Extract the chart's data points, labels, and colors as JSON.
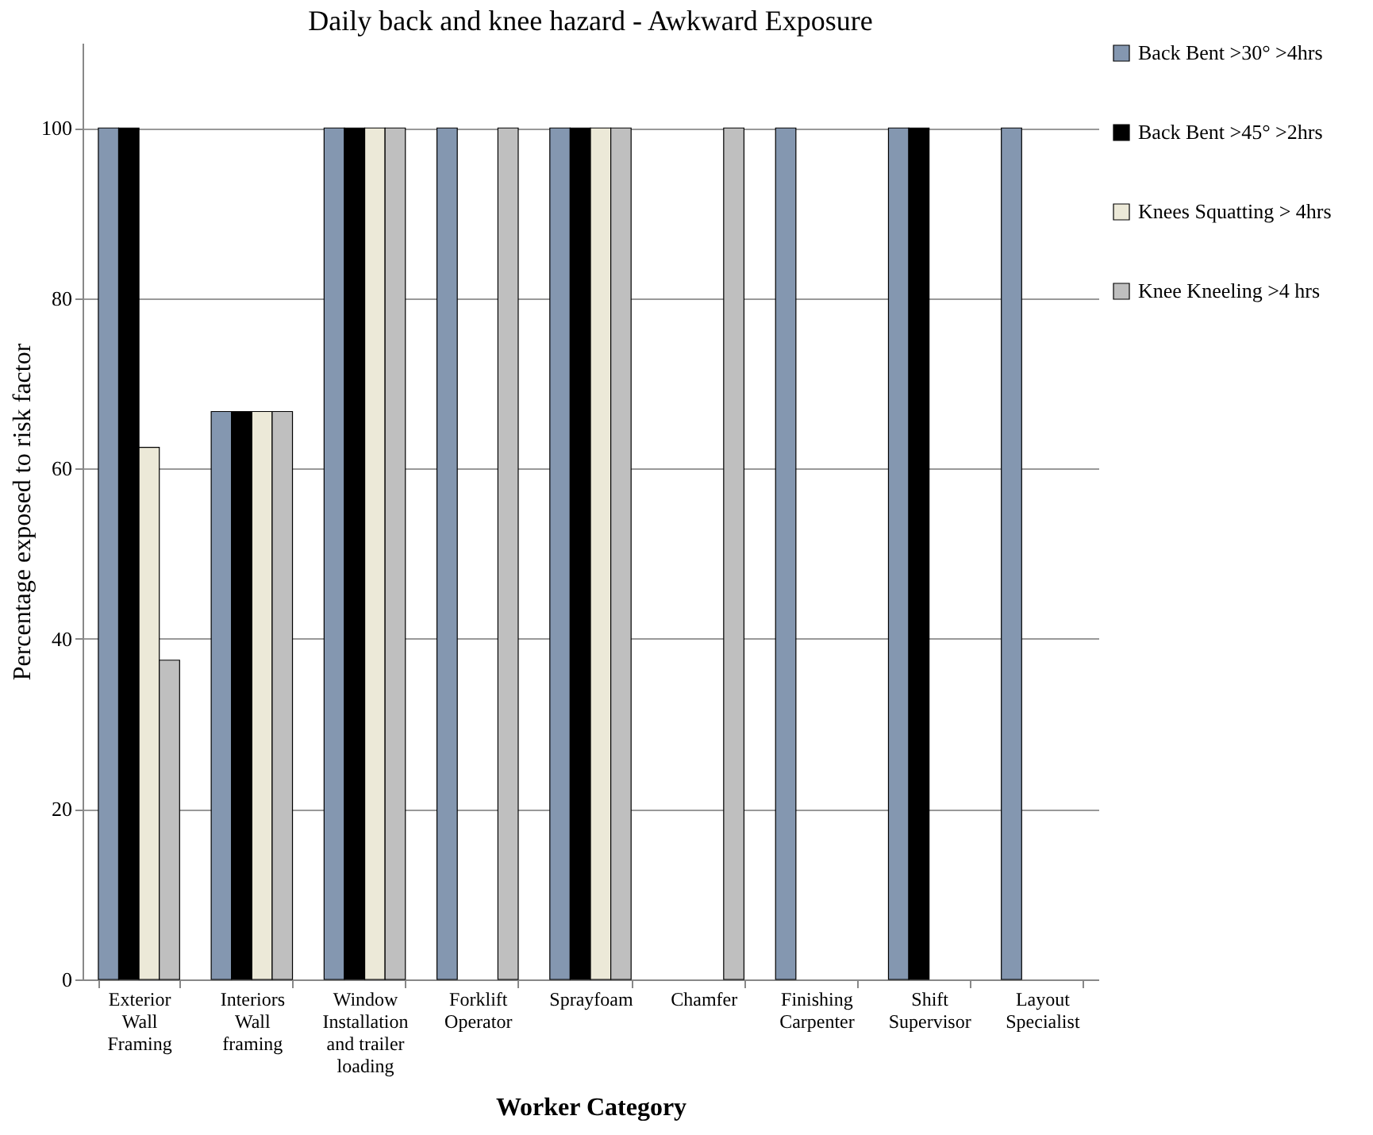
{
  "chart_data": {
    "type": "bar",
    "title": "Daily back and knee hazard  - Awkward Exposure",
    "xlabel": "Worker Category",
    "ylabel": "Percentage exposed to risk factor",
    "categories": [
      "Exterior Wall Framing",
      "Interiors Wall framing",
      "Window Installation and trailer loading",
      "Forklift Operator",
      "Sprayfoam",
      "Chamfer",
      "Finishing Carpenter",
      "Shift Supervisor",
      "Layout Specialist"
    ],
    "series": [
      {
        "name": "Back Bent >30° >4hrs",
        "color": "#8497b0",
        "values": [
          100,
          66.7,
          100,
          100,
          100,
          null,
          100,
          100,
          100
        ]
      },
      {
        "name": "Back Bent >45° >2hrs",
        "color": "#000000",
        "values": [
          100,
          66.7,
          100,
          null,
          100,
          null,
          null,
          100,
          null
        ]
      },
      {
        "name": "Knees Squatting > 4hrs",
        "color": "#ece9d8",
        "values": [
          62.5,
          66.7,
          100,
          null,
          100,
          null,
          null,
          null,
          null
        ]
      },
      {
        "name": "Knee Kneeling >4 hrs",
        "color": "#bfbfbf",
        "values": [
          37.5,
          66.7,
          100,
          100,
          100,
          100,
          null,
          null,
          null
        ]
      }
    ],
    "ylim": [
      0,
      110
    ],
    "yticks": [
      0,
      20,
      40,
      60,
      80,
      100
    ],
    "grid": "y",
    "legend": "right"
  }
}
